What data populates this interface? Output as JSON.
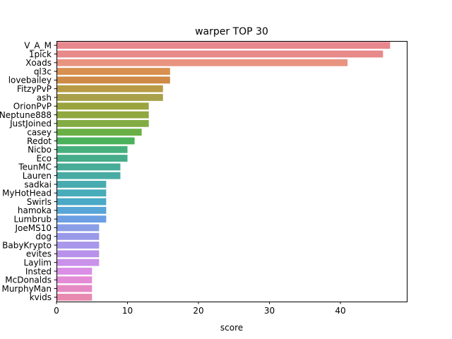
{
  "chart_data": {
    "type": "bar",
    "orientation": "horizontal",
    "title": "warper TOP 30",
    "xlabel": "score",
    "ylabel": "",
    "xlim": [
      0,
      49.35
    ],
    "xticks": [
      "0",
      "10",
      "20",
      "30",
      "40"
    ],
    "grid": false,
    "legend": "none",
    "categories": [
      "V_A_M",
      "1pick",
      "Xoads",
      "ql3c",
      "lovebailey",
      "FitzyPvP",
      "ash",
      "OrionPvP",
      "Neptune888",
      "JustJoined",
      "casey",
      "Redot",
      "Nicbo",
      "Eco",
      "TeunMC",
      "Lauren",
      "sadkai",
      "MyHotHead",
      "Swirls",
      "hamoka",
      "Lumbrub",
      "JoeMS10",
      "dog",
      "BabyKrypto",
      "evites",
      "Laylim",
      "Insted",
      "McDonalds",
      "MurphyMan",
      "kvids"
    ],
    "values": [
      47,
      46,
      41,
      16,
      16,
      15,
      15,
      13,
      13,
      13,
      12,
      11,
      10,
      10,
      9,
      9,
      7,
      7,
      7,
      7,
      7,
      6,
      6,
      6,
      6,
      6,
      5,
      5,
      5,
      5
    ],
    "colors": [
      "#e8888e",
      "#e8898a",
      "#e89481",
      "#d89050",
      "#cf8a47",
      "#b89b45",
      "#a9a04a",
      "#9aa43f",
      "#8fa83f",
      "#82ac43",
      "#6aaf46",
      "#4bb15b",
      "#46b07c",
      "#45ad89",
      "#47ac98",
      "#48aba4",
      "#48abaf",
      "#48abba",
      "#4aa9c6",
      "#58a5d7",
      "#6c9fe4",
      "#8a9ee8",
      "#9999ea",
      "#a897eb",
      "#b892ea",
      "#c991e9",
      "#da8ee6",
      "#e48bd6",
      "#e68ac3",
      "#e88ab0"
    ]
  }
}
